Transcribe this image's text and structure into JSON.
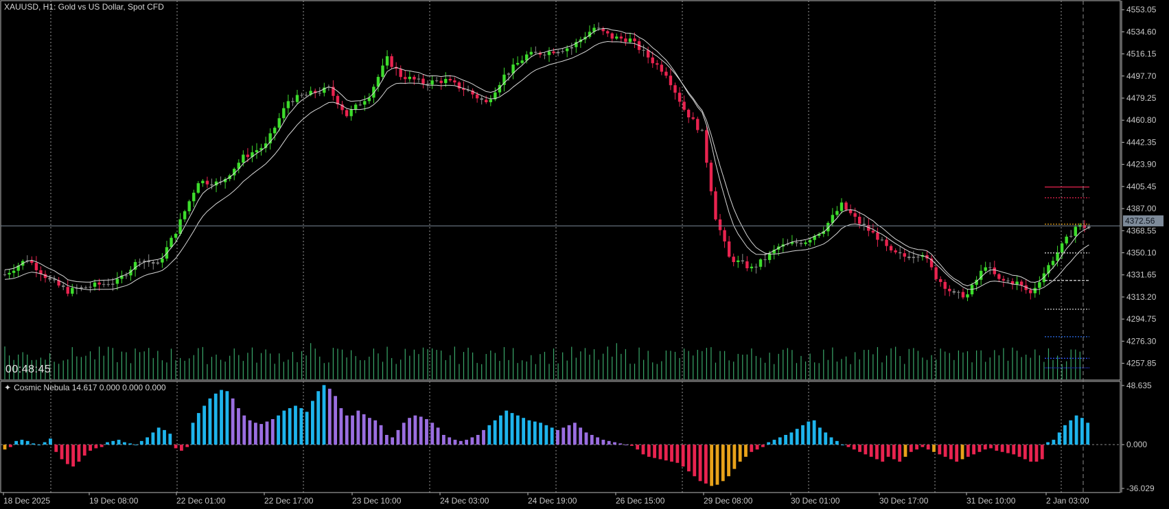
{
  "header": {
    "title": "XAUUSD, H1:  Gold vs US Dollar, Spot CFD"
  },
  "timer": "00:48:45",
  "current_price_label": "4372.56",
  "indicator": {
    "icon": "sparkle-icon",
    "title": "Cosmic Nebula 14.617 0.000 0.000 0.000"
  },
  "colors": {
    "bull": "#3ddc2c",
    "bear": "#e8234f",
    "neutral": "#8c8c8c",
    "volume": "#3aa86a",
    "hist_blue": "#1eb4ec",
    "hist_purple": "#9a6ee0",
    "hist_red": "#e8234f",
    "hist_orange": "#e8a21a",
    "grid": "#9a9a9a",
    "price_line": "#7d8a99"
  },
  "chart_data": [
    {
      "type": "candlestick",
      "title": "XAUUSD, H1:  Gold vs US Dollar, Spot CFD",
      "ylim": [
        4245,
        4556
      ],
      "price_ticks": [
        "4553.05",
        "4534.60",
        "4516.15",
        "4497.70",
        "4479.25",
        "4460.80",
        "4442.35",
        "4423.90",
        "4405.45",
        "4387.00",
        "4368.55",
        "4350.10",
        "4331.65",
        "4313.20",
        "4294.75",
        "4276.30",
        "4257.85"
      ],
      "time_labels": [
        "18 Dec 2025",
        "19 Dec 08:00",
        "22 Dec 01:00",
        "22 Dec 17:00",
        "23 Dec 10:00",
        "24 Dec 03:00",
        "24 Dec 19:00",
        "26 Dec 15:00",
        "29 Dec 08:00",
        "30 Dec 01:00",
        "30 Dec 17:00",
        "31 Dec 10:00",
        "2 Jan 03:00"
      ],
      "anchors": [
        [
          0,
          4332
        ],
        [
          5,
          4345
        ],
        [
          10,
          4327
        ],
        [
          14,
          4318
        ],
        [
          20,
          4323
        ],
        [
          25,
          4326
        ],
        [
          30,
          4345
        ],
        [
          34,
          4340
        ],
        [
          38,
          4368
        ],
        [
          43,
          4410
        ],
        [
          48,
          4408
        ],
        [
          53,
          4430
        ],
        [
          58,
          4440
        ],
        [
          63,
          4477
        ],
        [
          68,
          4483
        ],
        [
          72,
          4487
        ],
        [
          76,
          4465
        ],
        [
          81,
          4482
        ],
        [
          85,
          4512
        ],
        [
          88,
          4498
        ],
        [
          93,
          4492
        ],
        [
          98,
          4494
        ],
        [
          103,
          4485
        ],
        [
          107,
          4475
        ],
        [
          111,
          4498
        ],
        [
          116,
          4515
        ],
        [
          121,
          4518
        ],
        [
          126,
          4522
        ],
        [
          131,
          4538
        ],
        [
          135,
          4530
        ],
        [
          139,
          4528
        ],
        [
          144,
          4510
        ],
        [
          147,
          4500
        ],
        [
          151,
          4470
        ],
        [
          155,
          4450
        ],
        [
          158,
          4380
        ],
        [
          161,
          4346
        ],
        [
          166,
          4337
        ],
        [
          169,
          4345
        ],
        [
          172,
          4355
        ],
        [
          178,
          4360
        ],
        [
          182,
          4370
        ],
        [
          186,
          4390
        ],
        [
          190,
          4375
        ],
        [
          194,
          4363
        ],
        [
          197,
          4350
        ],
        [
          200,
          4347
        ],
        [
          204,
          4350
        ],
        [
          207,
          4330
        ],
        [
          211,
          4315
        ],
        [
          214,
          4315
        ],
        [
          218,
          4340
        ],
        [
          221,
          4327
        ],
        [
          225,
          4325
        ],
        [
          228,
          4316
        ],
        [
          233,
          4345
        ],
        [
          238,
          4372
        ],
        [
          241,
          4372
        ]
      ],
      "volumes_level": "medium",
      "current_price": 4372.56
    },
    {
      "type": "histogram",
      "title": "Cosmic Nebula 14.617 0.000 0.000 0.000",
      "ylim": [
        -36.029,
        48.635
      ],
      "ticks": [
        "48.635",
        "0.000",
        "-36.029"
      ],
      "segments": [
        {
          "from": 0,
          "to": 8,
          "values": [
            -4,
            -2,
            3,
            4,
            3,
            1,
            0,
            2,
            5
          ],
          "color": "mixed_small"
        },
        {
          "from": 9,
          "to": 16,
          "values": [
            -6,
            -12,
            -16,
            -18,
            -14,
            -9,
            -5,
            -3
          ],
          "color": "red"
        },
        {
          "from": 17,
          "to": 29,
          "values": [
            -2,
            2,
            3,
            4,
            2,
            1,
            0,
            3,
            6,
            10,
            14,
            12,
            9
          ],
          "color": "blue"
        },
        {
          "from": 30,
          "to": 32,
          "values": [
            -3,
            -5,
            -2
          ],
          "color": "red"
        },
        {
          "from": 33,
          "to": 47,
          "values": [
            18,
            26,
            32,
            38,
            42,
            45,
            44,
            38,
            30,
            24,
            20,
            18,
            17,
            19,
            21
          ],
          "color": "mixed_up"
        },
        {
          "from": 48,
          "to": 66,
          "values": [
            24,
            28,
            30,
            32,
            30,
            27,
            36,
            44,
            49,
            46,
            40,
            30,
            24,
            24,
            28,
            25,
            22,
            20,
            16
          ],
          "color": "mixed_up2"
        },
        {
          "from": 67,
          "to": 76,
          "values": [
            8,
            6,
            12,
            18,
            22,
            24,
            23,
            21,
            18,
            14
          ],
          "color": "purple"
        },
        {
          "from": 77,
          "to": 84,
          "values": [
            8,
            6,
            4,
            3,
            4,
            6,
            8,
            12
          ],
          "color": "purple2"
        },
        {
          "from": 85,
          "to": 96,
          "values": [
            16,
            20,
            24,
            28,
            26,
            24,
            22,
            20,
            19,
            18,
            16,
            14
          ],
          "color": "blue"
        },
        {
          "from": 97,
          "to": 110,
          "values": [
            12,
            14,
            16,
            18,
            14,
            10,
            8,
            6,
            4,
            3,
            2,
            1,
            0,
            -1
          ],
          "color": "purple3"
        },
        {
          "from": 111,
          "to": 130,
          "values": [
            -4,
            -8,
            -10,
            -11,
            -12,
            -13,
            -14,
            -15,
            -18,
            -22,
            -26,
            -30,
            -32,
            -34,
            -33,
            -30,
            -26,
            -20,
            -14,
            -10
          ],
          "color": "red_deep"
        },
        {
          "from": 131,
          "to": 142,
          "values": [
            -6,
            -4,
            -2,
            2,
            4,
            6,
            8,
            10,
            13,
            16,
            19,
            20
          ],
          "color": "mixed_mid"
        },
        {
          "from": 143,
          "to": 154,
          "values": [
            14,
            10,
            6,
            3,
            0,
            -2,
            -4,
            -6,
            -8,
            -10,
            -12,
            -14
          ],
          "color": "mixed_down"
        },
        {
          "from": 155,
          "to": 170,
          "values": [
            -10,
            -12,
            -14,
            -10,
            -6,
            -4,
            -2,
            -4,
            -6,
            -8,
            -10,
            -12,
            -14,
            -12,
            -10,
            -8
          ],
          "color": "red_mixed"
        },
        {
          "from": 171,
          "to": 182,
          "values": [
            -6,
            -4,
            -3,
            -5,
            -6,
            -7,
            -8,
            -10,
            -12,
            -14,
            -14,
            -12
          ],
          "color": "red"
        },
        {
          "from": 183,
          "to": 190,
          "values": [
            2,
            4,
            10,
            16,
            20,
            24,
            22,
            18
          ],
          "color": "blue"
        }
      ]
    }
  ]
}
